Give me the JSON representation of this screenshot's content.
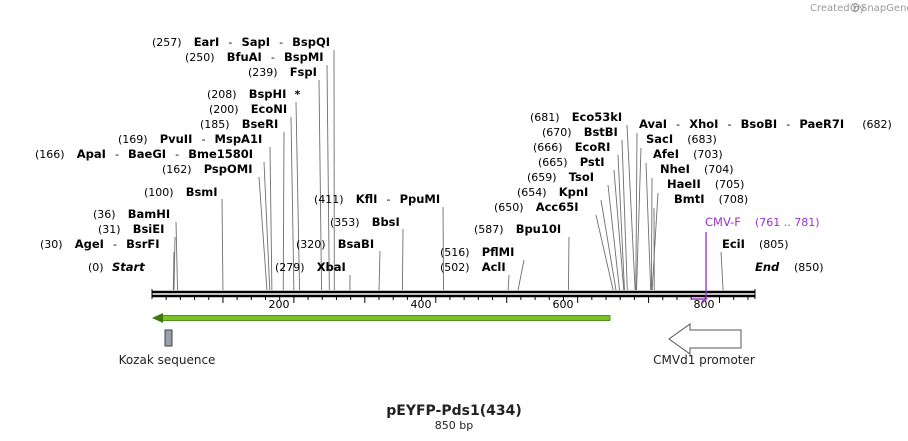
{
  "header": {
    "created_by": "Created by",
    "brand": "SnapGene"
  },
  "map": {
    "title": "pEYFP-Pds1(434)",
    "size": "850 bp",
    "length": 850,
    "ticks": [
      "200",
      "400",
      "600",
      "800"
    ],
    "ends": {
      "start": {
        "pos": "(0)",
        "label": "Start"
      },
      "end": {
        "pos": "(850)",
        "label": "End"
      }
    },
    "sites": [
      {
        "pos": "(257)",
        "names": [
          "EarI",
          "SapI",
          "BspQI"
        ],
        "bp": 257
      },
      {
        "pos": "(250)",
        "names": [
          "BfuAI",
          "BspMI"
        ],
        "bp": 250
      },
      {
        "pos": "(239)",
        "names": [
          "FspI"
        ],
        "bp": 239
      },
      {
        "pos": "(208)",
        "names": [
          "BspHI"
        ],
        "star": "*",
        "bp": 208
      },
      {
        "pos": "(200)",
        "names": [
          "EcoNI"
        ],
        "bp": 200
      },
      {
        "pos": "(185)",
        "names": [
          "BseRI"
        ],
        "bp": 185
      },
      {
        "pos": "(169)",
        "names": [
          "PvuII",
          "MspA1I"
        ],
        "bp": 169
      },
      {
        "pos": "(166)",
        "names": [
          "ApaI",
          "BaeGI",
          "Bme1580I"
        ],
        "bp": 166
      },
      {
        "pos": "(162)",
        "names": [
          "PspOMI"
        ],
        "bp": 162
      },
      {
        "pos": "(100)",
        "names": [
          "BsmI"
        ],
        "bp": 100
      },
      {
        "pos": "(36)",
        "names": [
          "BamHI"
        ],
        "bp": 36
      },
      {
        "pos": "(31)",
        "names": [
          "BsiEI"
        ],
        "bp": 31
      },
      {
        "pos": "(30)",
        "names": [
          "AgeI",
          "BsrFI"
        ],
        "bp": 30
      },
      {
        "pos": "(411)",
        "names": [
          "KflI",
          "PpuMI"
        ],
        "bp": 411
      },
      {
        "pos": "(353)",
        "names": [
          "BbsI"
        ],
        "bp": 353
      },
      {
        "pos": "(320)",
        "names": [
          "BsaBI"
        ],
        "bp": 320
      },
      {
        "pos": "(279)",
        "names": [
          "XbaI"
        ],
        "bp": 279
      },
      {
        "pos": "(516)",
        "names": [
          "PflMI"
        ],
        "bp": 516
      },
      {
        "pos": "(502)",
        "names": [
          "AclI"
        ],
        "bp": 502
      },
      {
        "pos": "(587)",
        "names": [
          "Bpu10I"
        ],
        "bp": 587
      },
      {
        "pos": "(681)",
        "names": [
          "Eco53kI"
        ],
        "bp": 681
      },
      {
        "pos": "(670)",
        "names": [
          "BstBI"
        ],
        "bp": 670
      },
      {
        "pos": "(666)",
        "names": [
          "EcoRI"
        ],
        "bp": 666
      },
      {
        "pos": "(665)",
        "names": [
          "PstI"
        ],
        "bp": 665
      },
      {
        "pos": "(659)",
        "names": [
          "TsoI"
        ],
        "bp": 659
      },
      {
        "pos": "(654)",
        "names": [
          "KpnI"
        ],
        "bp": 654
      },
      {
        "pos": "(650)",
        "names": [
          "Acc65I"
        ],
        "bp": 650
      },
      {
        "pos": "(682)",
        "names": [
          "AvaI",
          "XhoI",
          "BsoBI",
          "PaeR7I"
        ],
        "bp": 682
      },
      {
        "pos": "(683)",
        "names": [
          "SacI"
        ],
        "bp": 683
      },
      {
        "pos": "(703)",
        "names": [
          "AfeI"
        ],
        "bp": 703
      },
      {
        "pos": "(704)",
        "names": [
          "NheI"
        ],
        "bp": 704
      },
      {
        "pos": "(705)",
        "names": [
          "HaeII"
        ],
        "bp": 705
      },
      {
        "pos": "(708)",
        "names": [
          "BmtI"
        ],
        "bp": 708
      },
      {
        "pos": "(805)",
        "names": [
          "EciI"
        ],
        "bp": 805
      }
    ],
    "primer": {
      "name": "CMV-F",
      "range": "(761 .. 781)",
      "start_bp": 761,
      "end_bp": 781,
      "color": "#9b30c8"
    },
    "features": [
      {
        "label": "Kozak sequence",
        "start_bp": 9,
        "end_bp": 14,
        "color": "#9aa0a8"
      },
      {
        "label": "CMVd1 promoter",
        "start_bp": 728,
        "end_bp": 829,
        "color": "#ffffff"
      }
    ],
    "orf": {
      "start_bp": 0,
      "end_bp": 645,
      "color": "#79c322"
    }
  }
}
